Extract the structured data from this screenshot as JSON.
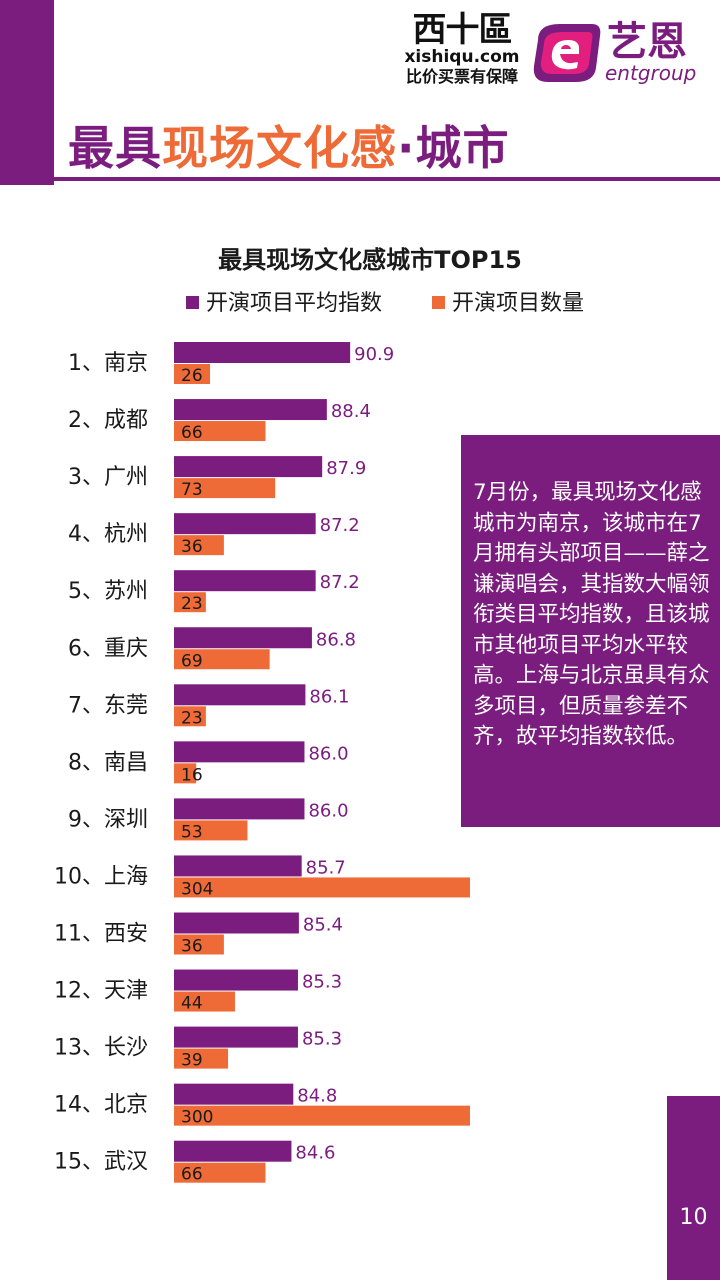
{
  "header": {
    "title_part1": "最具",
    "title_part2": "现场文化感",
    "title_part3": "·城市",
    "logo_left_mark": "西十區",
    "logo_left_domain": "xishiqu.com",
    "logo_left_tagline": "比价买票有保障",
    "logo_right_cn": "艺恩",
    "logo_right_en": "entgroup"
  },
  "note": {
    "text": "7月份，最具现场文化感城市为南京，该城市在7月拥有头部项目——薛之谦演唱会，其指数大幅领衔类目平均指数，且该城市其他项目平均水平较高。上海与北京虽具有众多项目，但质量参差不齐，故平均指数较低。"
  },
  "page_number": "10",
  "colors": {
    "purple": "#7b1c7f",
    "orange": "#ee6a37"
  },
  "chart_data": {
    "type": "bar",
    "orientation": "horizontal",
    "title": "最具现场文化感城市TOP15",
    "legend_position": "top",
    "categories": [
      "1、南京",
      "2、成都",
      "3、广州",
      "4、杭州",
      "5、苏州",
      "6、重庆",
      "7、东莞",
      "8、南昌",
      "9、深圳",
      "10、上海",
      "11、西安",
      "12、天津",
      "13、长沙",
      "14、北京",
      "15、武汉"
    ],
    "series": [
      {
        "name": "开演项目平均指数",
        "color": "#7b1c7f",
        "values": [
          90.9,
          88.4,
          87.9,
          87.2,
          87.2,
          86.8,
          86.1,
          86.0,
          86.0,
          85.7,
          85.4,
          85.3,
          85.3,
          84.8,
          84.6
        ],
        "labels": [
          "90.9",
          "88.4",
          "87.9",
          "87.2",
          "87.2",
          "86.8",
          "86.1",
          "86.0",
          "86.0",
          "85.7",
          "85.4",
          "85.3",
          "85.3",
          "84.8",
          "84.6"
        ]
      },
      {
        "name": "开演项目数量",
        "color": "#ee6a37",
        "values": [
          26,
          66,
          73,
          36,
          23,
          69,
          23,
          16,
          53,
          304,
          36,
          44,
          39,
          300,
          66
        ],
        "labels": [
          "26",
          "66",
          "73",
          "36",
          "23",
          "69",
          "23",
          "16",
          "53",
          "304",
          "36",
          "44",
          "39",
          "300",
          "66"
        ]
      }
    ]
  }
}
